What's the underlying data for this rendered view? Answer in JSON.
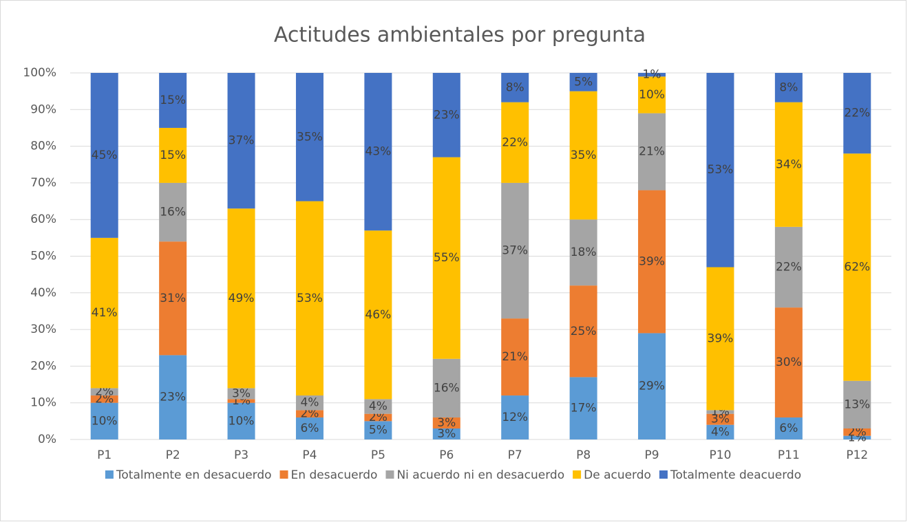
{
  "chart_data": {
    "type": "stacked_bar",
    "title": "Actitudes ambientales por pregunta",
    "categories": [
      "P1",
      "P2",
      "P3",
      "P4",
      "P5",
      "P6",
      "P7",
      "P8",
      "P9",
      "P10",
      "P11",
      "P12"
    ],
    "series": [
      {
        "name": "Totalmente en desacuerdo",
        "color": "#5b9bd5",
        "values": [
          10,
          23,
          10,
          6,
          5,
          3,
          12,
          17,
          29,
          4,
          6,
          1
        ],
        "value_labels": [
          "10%",
          "23%",
          "10%",
          "6%",
          "5%",
          "3%",
          "12%",
          "17%",
          "29%",
          "4%",
          "6%",
          "1%"
        ]
      },
      {
        "name": "En desacuerdo",
        "color": "#ed7d31",
        "values": [
          2,
          31,
          1,
          2,
          2,
          3,
          21,
          25,
          39,
          3,
          30,
          2
        ],
        "value_labels": [
          "2%",
          "31%",
          "1%",
          "2%",
          "2%",
          "3%",
          "21%",
          "25%",
          "39%",
          "3%",
          "30%",
          "2%"
        ]
      },
      {
        "name": "Ni acuerdo ni en desacuerdo",
        "color": "#a5a5a5",
        "values": [
          2,
          16,
          3,
          4,
          4,
          16,
          37,
          18,
          21,
          1,
          22,
          13
        ],
        "value_labels": [
          "2%",
          "16%",
          "3%",
          "4%",
          "4%",
          "16%",
          "37%",
          "18%",
          "21%",
          "1%",
          "22%",
          "13%"
        ]
      },
      {
        "name": "De acuerdo",
        "color": "#ffc000",
        "values": [
          41,
          15,
          49,
          53,
          46,
          55,
          22,
          35,
          10,
          39,
          34,
          62
        ],
        "value_labels": [
          "41%",
          "15%",
          "49%",
          "53%",
          "46%",
          "55%",
          "22%",
          "35%",
          "10%",
          "39%",
          "34%",
          "62%"
        ]
      },
      {
        "name": "Totalmente deacuerdo",
        "color": "#4472c4",
        "values": [
          45,
          15,
          37,
          35,
          43,
          23,
          8,
          5,
          1,
          53,
          8,
          22
        ],
        "value_labels": [
          "45%",
          "15%",
          "37%",
          "35%",
          "43%",
          "23%",
          "8%",
          "5%",
          "1%",
          "53%",
          "8%",
          "22%"
        ]
      }
    ],
    "ylim": [
      0,
      100
    ],
    "yticks": [
      {
        "value": 0,
        "label": "0%"
      },
      {
        "value": 10,
        "label": "10%"
      },
      {
        "value": 20,
        "label": "20%"
      },
      {
        "value": 30,
        "label": "30%"
      },
      {
        "value": 40,
        "label": "40%"
      },
      {
        "value": 50,
        "label": "50%"
      },
      {
        "value": 60,
        "label": "60%"
      },
      {
        "value": 70,
        "label": "70%"
      },
      {
        "value": 80,
        "label": "80%"
      },
      {
        "value": 90,
        "label": "90%"
      },
      {
        "value": 100,
        "label": "100%"
      }
    ],
    "grid": true,
    "legend": "bottom"
  }
}
